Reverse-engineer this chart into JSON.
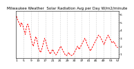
{
  "title": "Milwaukee Weather  Solar Radiation Avg per Day W/m2/minute",
  "line_color": "#FF0000",
  "background_color": "#FFFFFF",
  "grid_color": "#999999",
  "y_values": [
    5.8,
    5.5,
    5.2,
    5.0,
    4.8,
    4.5,
    5.0,
    4.8,
    4.6,
    4.2,
    3.8,
    3.5,
    4.2,
    4.6,
    4.8,
    4.5,
    4.0,
    3.5,
    3.0,
    2.6,
    2.2,
    2.0,
    2.4,
    2.8,
    3.2,
    3.0,
    2.5,
    2.0,
    1.6,
    1.4,
    1.2,
    1.5,
    1.8,
    2.2,
    2.6,
    3.0,
    2.8,
    2.4,
    2.0,
    1.6,
    1.4,
    1.2,
    1.0,
    1.2,
    1.4,
    1.6,
    1.4,
    1.2,
    1.0,
    0.9,
    1.0,
    1.2,
    1.4,
    1.6,
    1.8,
    2.0,
    1.8,
    1.6,
    1.4,
    1.2,
    1.0,
    0.9,
    0.8,
    0.9,
    1.0,
    1.2,
    1.0,
    0.9,
    0.8,
    0.85,
    0.9,
    1.0,
    1.2,
    1.4,
    1.6,
    1.8,
    2.0,
    1.8,
    1.6,
    1.8,
    2.0,
    2.2,
    2.4,
    2.6,
    2.8,
    3.0,
    2.8,
    2.5,
    2.2,
    2.0,
    1.8,
    1.6,
    1.4,
    1.6,
    1.8,
    2.0,
    2.2,
    2.4,
    2.6,
    2.8,
    3.0,
    3.2,
    3.4,
    3.3,
    3.2,
    3.0,
    2.8,
    2.6,
    2.4,
    2.2,
    2.5,
    2.8,
    3.0,
    3.2,
    3.4,
    3.2,
    3.0,
    2.8,
    2.6,
    2.4,
    2.5,
    2.6,
    2.4,
    2.2,
    2.0,
    1.9,
    1.8
  ],
  "ylim": [
    0.5,
    6.5
  ],
  "yticks": [
    1,
    2,
    3,
    4,
    5,
    6
  ],
  "ytick_labels": [
    "1",
    "2",
    "3",
    "4",
    "5",
    "6"
  ],
  "title_fontsize": 4.0,
  "tick_fontsize": 3.2,
  "x_tick_positions": [
    0,
    9,
    18,
    27,
    36,
    45,
    54,
    63,
    72,
    81,
    90,
    99,
    108,
    117,
    126
  ],
  "x_tick_labels": [
    "1",
    "5",
    "9",
    "13",
    "17",
    "21",
    "25",
    "29",
    "33",
    "37",
    "41",
    "45",
    "49",
    "53",
    "57"
  ],
  "grid_positions": [
    9,
    18,
    27,
    36,
    45,
    54,
    63,
    72,
    81,
    90,
    99,
    108,
    117,
    126
  ]
}
